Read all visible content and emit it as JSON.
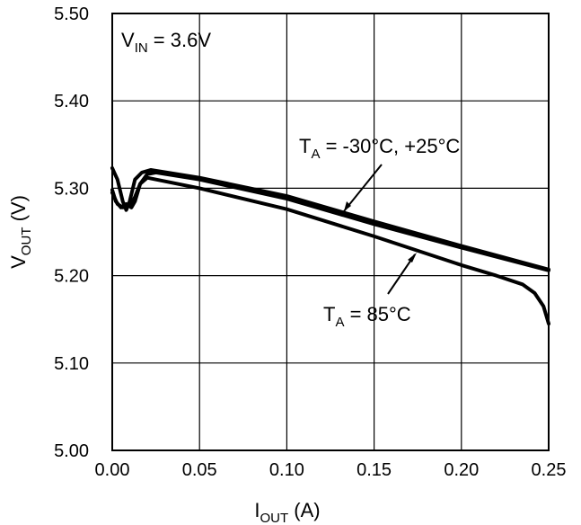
{
  "chart_data": {
    "type": "line",
    "title": "",
    "xlabel": {
      "main": "I",
      "sub": "OUT",
      "rest": " (A)"
    },
    "ylabel": {
      "main": "V",
      "sub": "OUT",
      "rest": " (V)"
    },
    "xlim": [
      0,
      0.25
    ],
    "ylim": [
      5.0,
      5.5
    ],
    "grid": true,
    "x_ticks": [
      0.0,
      0.05,
      0.1,
      0.15,
      0.2,
      0.25
    ],
    "x_tick_labels": [
      "0.00",
      "0.05",
      "0.10",
      "0.15",
      "0.20",
      "0.25"
    ],
    "y_ticks": [
      5.0,
      5.1,
      5.2,
      5.3,
      5.4,
      5.5
    ],
    "y_tick_labels": [
      "5.00",
      "5.10",
      "5.20",
      "5.30",
      "5.40",
      "5.50"
    ],
    "condition": {
      "main": "V",
      "sub": "IN",
      "rest": " = 3.6V"
    },
    "series": [
      {
        "name": "TA = -30°C",
        "points": [
          [
            0.0,
            5.323
          ],
          [
            0.003,
            5.31
          ],
          [
            0.006,
            5.285
          ],
          [
            0.008,
            5.275
          ],
          [
            0.01,
            5.285
          ],
          [
            0.013,
            5.31
          ],
          [
            0.017,
            5.318
          ],
          [
            0.022,
            5.321
          ],
          [
            0.05,
            5.312
          ],
          [
            0.1,
            5.291
          ],
          [
            0.15,
            5.262
          ],
          [
            0.2,
            5.234
          ],
          [
            0.25,
            5.207
          ]
        ]
      },
      {
        "name": "TA = +25°C",
        "points": [
          [
            0.0,
            5.298
          ],
          [
            0.002,
            5.285
          ],
          [
            0.005,
            5.278
          ],
          [
            0.008,
            5.282
          ],
          [
            0.011,
            5.278
          ],
          [
            0.013,
            5.285
          ],
          [
            0.016,
            5.305
          ],
          [
            0.02,
            5.316
          ],
          [
            0.025,
            5.318
          ],
          [
            0.05,
            5.31
          ],
          [
            0.1,
            5.288
          ],
          [
            0.15,
            5.259
          ],
          [
            0.2,
            5.232
          ],
          [
            0.25,
            5.206
          ]
        ]
      },
      {
        "name": "TA = 85°C",
        "points": [
          [
            0.0,
            5.295
          ],
          [
            0.003,
            5.282
          ],
          [
            0.006,
            5.278
          ],
          [
            0.009,
            5.28
          ],
          [
            0.011,
            5.283
          ],
          [
            0.013,
            5.29
          ],
          [
            0.016,
            5.305
          ],
          [
            0.02,
            5.312
          ],
          [
            0.05,
            5.3
          ],
          [
            0.1,
            5.276
          ],
          [
            0.15,
            5.245
          ],
          [
            0.2,
            5.212
          ],
          [
            0.22,
            5.2
          ],
          [
            0.235,
            5.19
          ],
          [
            0.242,
            5.18
          ],
          [
            0.247,
            5.165
          ],
          [
            0.25,
            5.145
          ]
        ]
      }
    ],
    "annotations": [
      {
        "id": "cold",
        "main": "T",
        "sub": "A",
        "rest": " = -30°C, +25°C",
        "arrow_to": [
          0.132,
          5.278
        ]
      },
      {
        "id": "hot",
        "main": "T",
        "sub": "A",
        "rest": " = 85°C",
        "arrow_to": [
          0.175,
          5.232
        ]
      }
    ]
  }
}
